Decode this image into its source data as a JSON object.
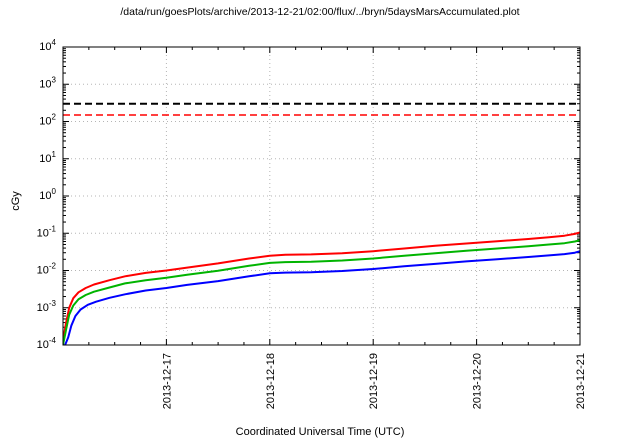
{
  "chart_data": {
    "type": "line",
    "title": "/data/run/goesPlots/archive/2013-12-21/02:00/flux/../bryn/5daysMarsAccumulated.plot",
    "xlabel": "Coordinated Universal Time (UTC)",
    "ylabel": "cGy",
    "y_scale": "log",
    "ylim": [
      0.0001,
      10000.0
    ],
    "x_range_days": [
      0,
      5
    ],
    "grid": true,
    "legend": "none",
    "x_ticks": [
      {
        "t": 1,
        "label": "2013-12-17"
      },
      {
        "t": 2,
        "label": "2013-12-18"
      },
      {
        "t": 3,
        "label": "2013-12-19"
      },
      {
        "t": 4,
        "label": "2013-12-20"
      },
      {
        "t": 5,
        "label": "2013-12-21"
      }
    ],
    "y_tick_exponents": [
      4,
      3,
      2,
      1,
      0,
      -1,
      -2,
      -3,
      -4
    ],
    "hlines": [
      {
        "value": 300,
        "color": "#000000",
        "style": "dashed",
        "width": 2
      },
      {
        "value": 150,
        "color": "#ff0000",
        "style": "dashed",
        "width": 1.5
      }
    ],
    "series": [
      {
        "name": "accumulated-dose-red",
        "color": "#ff0000",
        "points": [
          [
            0.0,
            0.00013
          ],
          [
            0.03,
            0.0004
          ],
          [
            0.06,
            0.001
          ],
          [
            0.1,
            0.0018
          ],
          [
            0.15,
            0.0026
          ],
          [
            0.22,
            0.0034
          ],
          [
            0.3,
            0.0042
          ],
          [
            0.45,
            0.0055
          ],
          [
            0.6,
            0.007
          ],
          [
            0.8,
            0.0086
          ],
          [
            1.0,
            0.01
          ],
          [
            1.2,
            0.012
          ],
          [
            1.5,
            0.0155
          ],
          [
            1.8,
            0.021
          ],
          [
            2.0,
            0.025
          ],
          [
            2.15,
            0.0265
          ],
          [
            2.4,
            0.027
          ],
          [
            2.7,
            0.029
          ],
          [
            3.0,
            0.033
          ],
          [
            3.3,
            0.039
          ],
          [
            3.6,
            0.046
          ],
          [
            3.9,
            0.053
          ],
          [
            4.2,
            0.061
          ],
          [
            4.5,
            0.07
          ],
          [
            4.7,
            0.078
          ],
          [
            4.85,
            0.086
          ],
          [
            4.95,
            0.096
          ],
          [
            5.0,
            0.105
          ]
        ]
      },
      {
        "name": "accumulated-dose-green",
        "color": "#00b400",
        "points": [
          [
            0.0,
            0.0001
          ],
          [
            0.03,
            0.00026
          ],
          [
            0.06,
            0.00065
          ],
          [
            0.1,
            0.00115
          ],
          [
            0.15,
            0.0017
          ],
          [
            0.22,
            0.0022
          ],
          [
            0.3,
            0.0027
          ],
          [
            0.45,
            0.0035
          ],
          [
            0.6,
            0.0045
          ],
          [
            0.8,
            0.0055
          ],
          [
            1.0,
            0.0064
          ],
          [
            1.2,
            0.0077
          ],
          [
            1.5,
            0.0099
          ],
          [
            1.8,
            0.0134
          ],
          [
            2.0,
            0.016
          ],
          [
            2.15,
            0.0168
          ],
          [
            2.4,
            0.0172
          ],
          [
            2.7,
            0.0185
          ],
          [
            3.0,
            0.021
          ],
          [
            3.3,
            0.025
          ],
          [
            3.6,
            0.029
          ],
          [
            3.9,
            0.034
          ],
          [
            4.2,
            0.039
          ],
          [
            4.5,
            0.045
          ],
          [
            4.7,
            0.05
          ],
          [
            4.85,
            0.054
          ],
          [
            4.95,
            0.06
          ],
          [
            5.0,
            0.065
          ]
        ]
      },
      {
        "name": "accumulated-dose-blue",
        "color": "#0000ff",
        "points": [
          [
            0.02,
            0.0001
          ],
          [
            0.05,
            0.00016
          ],
          [
            0.08,
            0.00033
          ],
          [
            0.12,
            0.0006
          ],
          [
            0.17,
            0.0009
          ],
          [
            0.24,
            0.0012
          ],
          [
            0.32,
            0.00145
          ],
          [
            0.45,
            0.00185
          ],
          [
            0.6,
            0.0023
          ],
          [
            0.8,
            0.0029
          ],
          [
            1.0,
            0.0034
          ],
          [
            1.2,
            0.0041
          ],
          [
            1.5,
            0.0052
          ],
          [
            1.8,
            0.007
          ],
          [
            2.0,
            0.0084
          ],
          [
            2.15,
            0.0088
          ],
          [
            2.4,
            0.009
          ],
          [
            2.7,
            0.0097
          ],
          [
            3.0,
            0.011
          ],
          [
            3.3,
            0.013
          ],
          [
            3.6,
            0.015
          ],
          [
            3.9,
            0.0175
          ],
          [
            4.2,
            0.02
          ],
          [
            4.5,
            0.023
          ],
          [
            4.7,
            0.0255
          ],
          [
            4.85,
            0.0275
          ],
          [
            4.95,
            0.03
          ],
          [
            5.0,
            0.033
          ]
        ]
      }
    ]
  }
}
